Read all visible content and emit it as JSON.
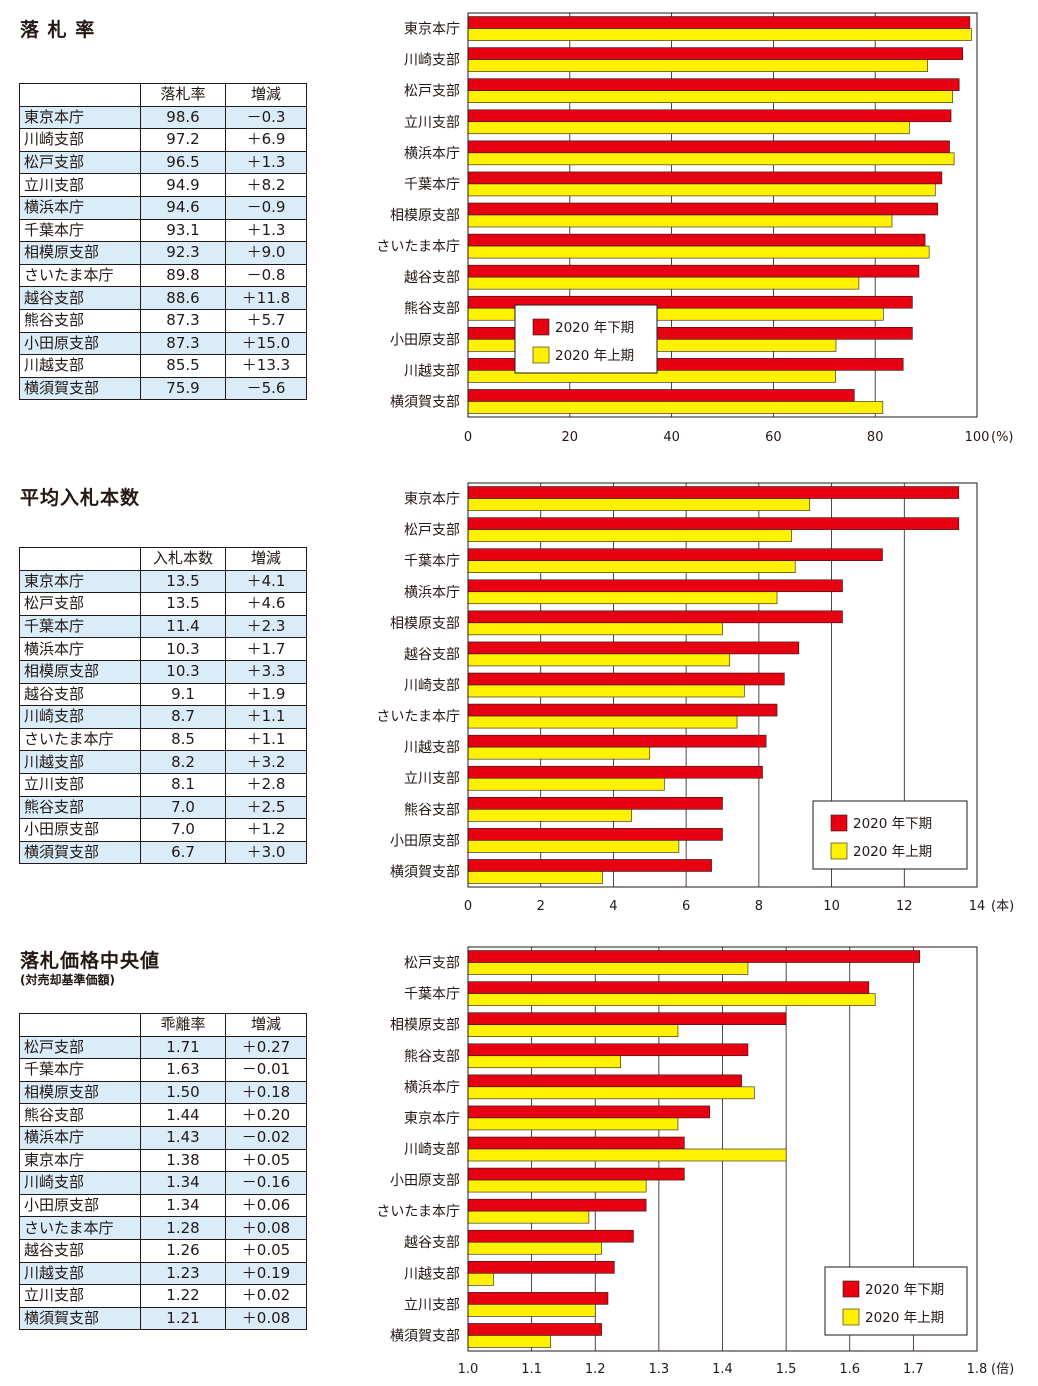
{
  "colors": {
    "series_2020_h2": "#e60012",
    "series_2020_h1": "#fff100",
    "table_stripe": "#d9ecf8"
  },
  "chart_data": [
    {
      "type": "bar",
      "title": "落 札 率",
      "subtitle": "",
      "table_headers": [
        "",
        "落札率",
        "増減"
      ],
      "categories": [
        "東京本庁",
        "川崎支部",
        "松戸支部",
        "立川支部",
        "横浜本庁",
        "千葉本庁",
        "相模原支部",
        "さいたま本庁",
        "越谷支部",
        "熊谷支部",
        "小田原支部",
        "川越支部",
        "横須賀支部"
      ],
      "series": [
        {
          "name": "2020 年下期",
          "values": [
            98.6,
            97.2,
            96.5,
            94.9,
            94.6,
            93.1,
            92.3,
            89.8,
            88.6,
            87.3,
            87.3,
            85.5,
            75.9
          ]
        },
        {
          "name": "2020 年上期",
          "values": [
            98.9,
            90.3,
            95.2,
            86.7,
            95.5,
            91.8,
            83.3,
            90.6,
            76.8,
            81.6,
            72.3,
            72.2,
            81.5
          ]
        }
      ],
      "diff_labels": [
        "－0.3",
        "＋6.9",
        "＋1.3",
        "＋8.2",
        "－0.9",
        "＋1.3",
        "＋9.0",
        "－0.8",
        "＋11.8",
        "＋5.7",
        "＋15.0",
        "＋13.3",
        "－5.6"
      ],
      "value_labels": [
        "98.6",
        "97.2",
        "96.5",
        "94.9",
        "94.6",
        "93.1",
        "92.3",
        "89.8",
        "88.6",
        "87.3",
        "87.3",
        "85.5",
        "75.9"
      ],
      "xlim": [
        0,
        100
      ],
      "xticks": [
        0,
        20,
        40,
        60,
        80,
        100
      ],
      "tick_labels": [
        "0",
        "20",
        "40",
        "60",
        "80",
        "100"
      ],
      "unit_label": "(%)",
      "grid": true,
      "legend_position": "center-left"
    },
    {
      "type": "bar",
      "title": "平均入札本数",
      "subtitle": "",
      "table_headers": [
        "",
        "入札本数",
        "増減"
      ],
      "categories": [
        "東京本庁",
        "松戸支部",
        "千葉本庁",
        "横浜本庁",
        "相模原支部",
        "越谷支部",
        "川崎支部",
        "さいたま本庁",
        "川越支部",
        "立川支部",
        "熊谷支部",
        "小田原支部",
        "横須賀支部"
      ],
      "series": [
        {
          "name": "2020 年下期",
          "values": [
            13.5,
            13.5,
            11.4,
            10.3,
            10.3,
            9.1,
            8.7,
            8.5,
            8.2,
            8.1,
            7.0,
            7.0,
            6.7
          ]
        },
        {
          "name": "2020 年上期",
          "values": [
            9.4,
            8.9,
            9.0,
            8.5,
            7.0,
            7.2,
            7.6,
            7.4,
            5.0,
            5.4,
            4.5,
            5.8,
            3.7
          ]
        }
      ],
      "diff_labels": [
        "＋4.1",
        "＋4.6",
        "＋2.3",
        "＋1.7",
        "＋3.3",
        "＋1.9",
        "＋1.1",
        "＋1.1",
        "＋3.2",
        "＋2.8",
        "＋2.5",
        "＋1.2",
        "＋3.0"
      ],
      "value_labels": [
        "13.5",
        "13.5",
        "11.4",
        "10.3",
        "10.3",
        "9.1",
        "8.7",
        "8.5",
        "8.2",
        "8.1",
        "7.0",
        "7.0",
        "6.7"
      ],
      "xlim": [
        0,
        14
      ],
      "xticks": [
        0,
        2,
        4,
        6,
        8,
        10,
        12,
        14
      ],
      "tick_labels": [
        "0",
        "2",
        "4",
        "6",
        "8",
        "10",
        "12",
        "14"
      ],
      "unit_label": "(本)",
      "grid": true,
      "legend_position": "bottom-right"
    },
    {
      "type": "bar",
      "title": "落札価格中央値",
      "subtitle": "(対売却基準価額)",
      "table_headers": [
        "",
        "乖離率",
        "増減"
      ],
      "categories": [
        "松戸支部",
        "千葉本庁",
        "相模原支部",
        "熊谷支部",
        "横浜本庁",
        "東京本庁",
        "川崎支部",
        "小田原支部",
        "さいたま本庁",
        "越谷支部",
        "川越支部",
        "立川支部",
        "横須賀支部"
      ],
      "series": [
        {
          "name": "2020 年下期",
          "values": [
            1.71,
            1.63,
            1.5,
            1.44,
            1.43,
            1.38,
            1.34,
            1.34,
            1.28,
            1.26,
            1.23,
            1.22,
            1.21
          ]
        },
        {
          "name": "2020 年上期",
          "values": [
            1.44,
            1.64,
            1.33,
            1.24,
            1.45,
            1.33,
            1.5,
            1.28,
            1.19,
            1.21,
            1.04,
            1.2,
            1.13
          ]
        }
      ],
      "diff_labels": [
        "＋0.27",
        "－0.01",
        "＋0.18",
        "＋0.20",
        "－0.02",
        "＋0.05",
        "－0.16",
        "＋0.06",
        "＋0.08",
        "＋0.05",
        "＋0.19",
        "＋0.02",
        "＋0.08"
      ],
      "value_labels": [
        "1.71",
        "1.63",
        "1.50",
        "1.44",
        "1.43",
        "1.38",
        "1.34",
        "1.34",
        "1.28",
        "1.26",
        "1.23",
        "1.22",
        "1.21"
      ],
      "xlim": [
        1.0,
        1.8
      ],
      "xticks": [
        1.0,
        1.1,
        1.2,
        1.3,
        1.4,
        1.5,
        1.6,
        1.7,
        1.8
      ],
      "tick_labels": [
        "1.0",
        "1.1",
        "1.2",
        "1.3",
        "1.4",
        "1.5",
        "1.6",
        "1.7",
        "1.8"
      ],
      "unit_label": "(倍)",
      "grid": true,
      "legend_position": "bottom-right"
    }
  ]
}
